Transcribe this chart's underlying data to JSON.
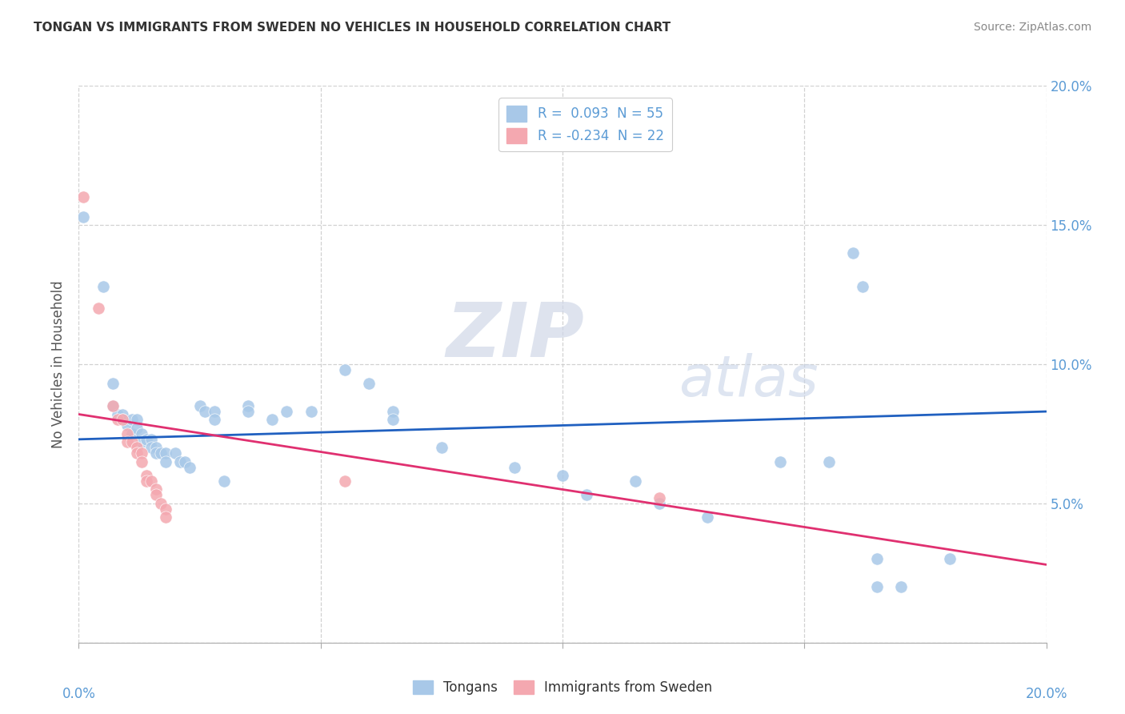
{
  "title": "TONGAN VS IMMIGRANTS FROM SWEDEN NO VEHICLES IN HOUSEHOLD CORRELATION CHART",
  "source": "Source: ZipAtlas.com",
  "ylabel": "No Vehicles in Household",
  "legend_blue_label": "R =  0.093  N = 55",
  "legend_pink_label": "R = -0.234  N = 22",
  "legend_label_tongans": "Tongans",
  "legend_label_immigrants": "Immigrants from Sweden",
  "blue_color": "#a8c8e8",
  "pink_color": "#f4a8b0",
  "line_blue_color": "#2060c0",
  "line_pink_color": "#e03070",
  "blue_scatter": [
    [
      0.001,
      0.153
    ],
    [
      0.005,
      0.128
    ],
    [
      0.007,
      0.093
    ],
    [
      0.007,
      0.085
    ],
    [
      0.008,
      0.082
    ],
    [
      0.009,
      0.082
    ],
    [
      0.009,
      0.08
    ],
    [
      0.01,
      0.078
    ],
    [
      0.011,
      0.08
    ],
    [
      0.011,
      0.075
    ],
    [
      0.012,
      0.08
    ],
    [
      0.012,
      0.077
    ],
    [
      0.013,
      0.075
    ],
    [
      0.013,
      0.072
    ],
    [
      0.014,
      0.073
    ],
    [
      0.015,
      0.073
    ],
    [
      0.015,
      0.07
    ],
    [
      0.016,
      0.07
    ],
    [
      0.016,
      0.068
    ],
    [
      0.017,
      0.068
    ],
    [
      0.018,
      0.068
    ],
    [
      0.018,
      0.065
    ],
    [
      0.02,
      0.068
    ],
    [
      0.021,
      0.065
    ],
    [
      0.022,
      0.065
    ],
    [
      0.023,
      0.063
    ],
    [
      0.025,
      0.085
    ],
    [
      0.026,
      0.083
    ],
    [
      0.028,
      0.083
    ],
    [
      0.028,
      0.08
    ],
    [
      0.03,
      0.058
    ],
    [
      0.035,
      0.085
    ],
    [
      0.035,
      0.083
    ],
    [
      0.04,
      0.08
    ],
    [
      0.043,
      0.083
    ],
    [
      0.048,
      0.083
    ],
    [
      0.055,
      0.098
    ],
    [
      0.06,
      0.093
    ],
    [
      0.065,
      0.083
    ],
    [
      0.065,
      0.08
    ],
    [
      0.075,
      0.07
    ],
    [
      0.09,
      0.063
    ],
    [
      0.1,
      0.06
    ],
    [
      0.105,
      0.053
    ],
    [
      0.115,
      0.058
    ],
    [
      0.12,
      0.05
    ],
    [
      0.13,
      0.045
    ],
    [
      0.145,
      0.065
    ],
    [
      0.155,
      0.065
    ],
    [
      0.16,
      0.14
    ],
    [
      0.162,
      0.128
    ],
    [
      0.165,
      0.03
    ],
    [
      0.165,
      0.02
    ],
    [
      0.17,
      0.02
    ],
    [
      0.18,
      0.03
    ]
  ],
  "pink_scatter": [
    [
      0.001,
      0.16
    ],
    [
      0.004,
      0.12
    ],
    [
      0.007,
      0.085
    ],
    [
      0.008,
      0.08
    ],
    [
      0.009,
      0.08
    ],
    [
      0.01,
      0.075
    ],
    [
      0.01,
      0.072
    ],
    [
      0.011,
      0.072
    ],
    [
      0.012,
      0.07
    ],
    [
      0.012,
      0.068
    ],
    [
      0.013,
      0.068
    ],
    [
      0.013,
      0.065
    ],
    [
      0.014,
      0.06
    ],
    [
      0.014,
      0.058
    ],
    [
      0.015,
      0.058
    ],
    [
      0.016,
      0.055
    ],
    [
      0.016,
      0.053
    ],
    [
      0.017,
      0.05
    ],
    [
      0.018,
      0.048
    ],
    [
      0.018,
      0.045
    ],
    [
      0.055,
      0.058
    ],
    [
      0.12,
      0.052
    ]
  ],
  "blue_line_x": [
    0.0,
    0.2
  ],
  "blue_line_y": [
    0.073,
    0.083
  ],
  "pink_line_x": [
    0.0,
    0.2
  ],
  "pink_line_y": [
    0.082,
    0.028
  ],
  "xlim": [
    0.0,
    0.2
  ],
  "ylim": [
    0.0,
    0.2
  ],
  "xticks": [
    0.0,
    0.05,
    0.1,
    0.15,
    0.2
  ],
  "yticks": [
    0.0,
    0.05,
    0.1,
    0.15,
    0.2
  ],
  "background_color": "#ffffff",
  "grid_color": "#cccccc",
  "tick_color": "#5b9bd5",
  "title_color": "#333333",
  "source_color": "#888888"
}
